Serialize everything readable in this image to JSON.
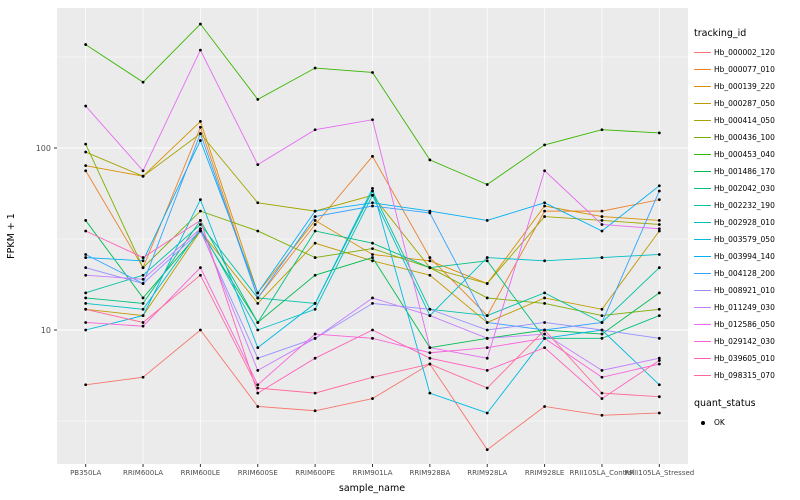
{
  "colors": {
    "panel_bg": "#EBEBEB",
    "grid": "#FFFFFF",
    "point": "#000000",
    "tick_text": "#4D4D4D",
    "axis_title": "#000000"
  },
  "chart_data": {
    "type": "line",
    "title": "",
    "xlabel": "sample_name",
    "ylabel": "FPKM + 1",
    "y_scale": "log10",
    "ylim": [
      1.8,
      600
    ],
    "y_ticks": [
      10,
      100
    ],
    "y_minor_ticks": [
      3.1623,
      31.623,
      316.23
    ],
    "grid": true,
    "legend_position": "right",
    "legend_title": "tracking_id",
    "quant_status": {
      "title": "quant_status",
      "label": "OK",
      "marker": "point",
      "color": "#000000"
    },
    "categories": [
      "PB350LA",
      "RRIM600LA",
      "RRIM600LE",
      "RRIM600SE",
      "RRIM600PE",
      "RRIM901LA",
      "RRIM928BA",
      "RRIM928LA",
      "RRIM928LE",
      "RRII105LA_Control",
      "RRII105LA_Stressed"
    ],
    "series": [
      {
        "name": "Hb_000002_120",
        "color": "#F8766D",
        "values": [
          5.0,
          5.5,
          10,
          3.8,
          3.6,
          4.2,
          6.5,
          2.2,
          3.8,
          3.4,
          3.5
        ]
      },
      {
        "name": "Hb_000077_010",
        "color": "#EA8331",
        "values": [
          75,
          22,
          130,
          15,
          38,
          90,
          25,
          12,
          45,
          45,
          52
        ]
      },
      {
        "name": "Hb_000139_220",
        "color": "#D89000",
        "values": [
          80,
          70,
          140,
          16,
          40,
          26,
          24,
          18,
          48,
          42,
          40
        ]
      },
      {
        "name": "Hb_000287_050",
        "color": "#C09B00",
        "values": [
          13,
          12,
          35,
          14,
          30,
          24,
          20,
          11,
          15,
          13,
          35
        ]
      },
      {
        "name": "Hb_000414_050",
        "color": "#A3A500",
        "values": [
          95,
          70,
          120,
          50,
          45,
          55,
          22,
          18,
          42,
          40,
          38
        ]
      },
      {
        "name": "Hb_000436_100",
        "color": "#7CAE00",
        "values": [
          105,
          22,
          45,
          35,
          25,
          28,
          22,
          15,
          14,
          12,
          13
        ]
      },
      {
        "name": "Hb_000453_040",
        "color": "#39B600",
        "values": [
          370,
          230,
          480,
          185,
          275,
          260,
          86,
          63,
          104,
          126,
          121
        ]
      },
      {
        "name": "Hb_001486_170",
        "color": "#00BB4E",
        "values": [
          40,
          15,
          35,
          11,
          20,
          25,
          8,
          9,
          10,
          9.5,
          16
        ]
      },
      {
        "name": "Hb_002042_030",
        "color": "#00BF7D",
        "values": [
          15,
          14,
          40,
          11,
          35,
          30,
          22,
          24,
          9,
          9,
          12
        ]
      },
      {
        "name": "Hb_002232_190",
        "color": "#00C1A3",
        "values": [
          16,
          20,
          38,
          15,
          14,
          58,
          13,
          12,
          16,
          11,
          22
        ]
      },
      {
        "name": "Hb_002928_010",
        "color": "#00BFC4",
        "values": [
          14,
          13,
          36,
          10,
          13,
          55,
          12,
          25,
          24,
          25,
          26
        ]
      },
      {
        "name": "Hb_003579_050",
        "color": "#00BAE0",
        "values": [
          10,
          12,
          52,
          8,
          14,
          60,
          4.5,
          3.5,
          9,
          10,
          5
        ]
      },
      {
        "name": "Hb_003994_140",
        "color": "#00B0F6",
        "values": [
          25,
          24,
          110,
          16,
          45,
          50,
          45,
          40,
          50,
          35,
          62
        ]
      },
      {
        "name": "Hb_004128_200",
        "color": "#35A2FF",
        "values": [
          26,
          18,
          120,
          15,
          42,
          48,
          44,
          11,
          10,
          11,
          58
        ]
      },
      {
        "name": "Hb_008921_010",
        "color": "#9590FF",
        "values": [
          22,
          18,
          35,
          7,
          9,
          14,
          13,
          10,
          11,
          10,
          9
        ]
      },
      {
        "name": "Hb_011249_030",
        "color": "#C77CFF",
        "values": [
          20,
          19,
          36,
          6,
          9,
          15,
          12,
          9,
          9.5,
          6,
          7
        ]
      },
      {
        "name": "Hb_012586_050",
        "color": "#E76BF3",
        "values": [
          170,
          75,
          345,
          81,
          126,
          143,
          8,
          7,
          75,
          38,
          36
        ]
      },
      {
        "name": "Hb_029142_030",
        "color": "#FA62DB",
        "values": [
          11,
          10.5,
          22,
          5,
          9.5,
          9,
          7.5,
          8,
          9,
          5.5,
          6.5
        ]
      },
      {
        "name": "Hb_039605_010",
        "color": "#FF62BC",
        "values": [
          35,
          25,
          40,
          4.5,
          7,
          10,
          7,
          6,
          8,
          4.2,
          6.8
        ]
      },
      {
        "name": "Hb_098315_070",
        "color": "#FF6A98",
        "values": [
          13,
          11,
          20,
          4.8,
          4.5,
          5.5,
          6.5,
          4.8,
          10,
          4.5,
          4.3
        ]
      }
    ]
  }
}
